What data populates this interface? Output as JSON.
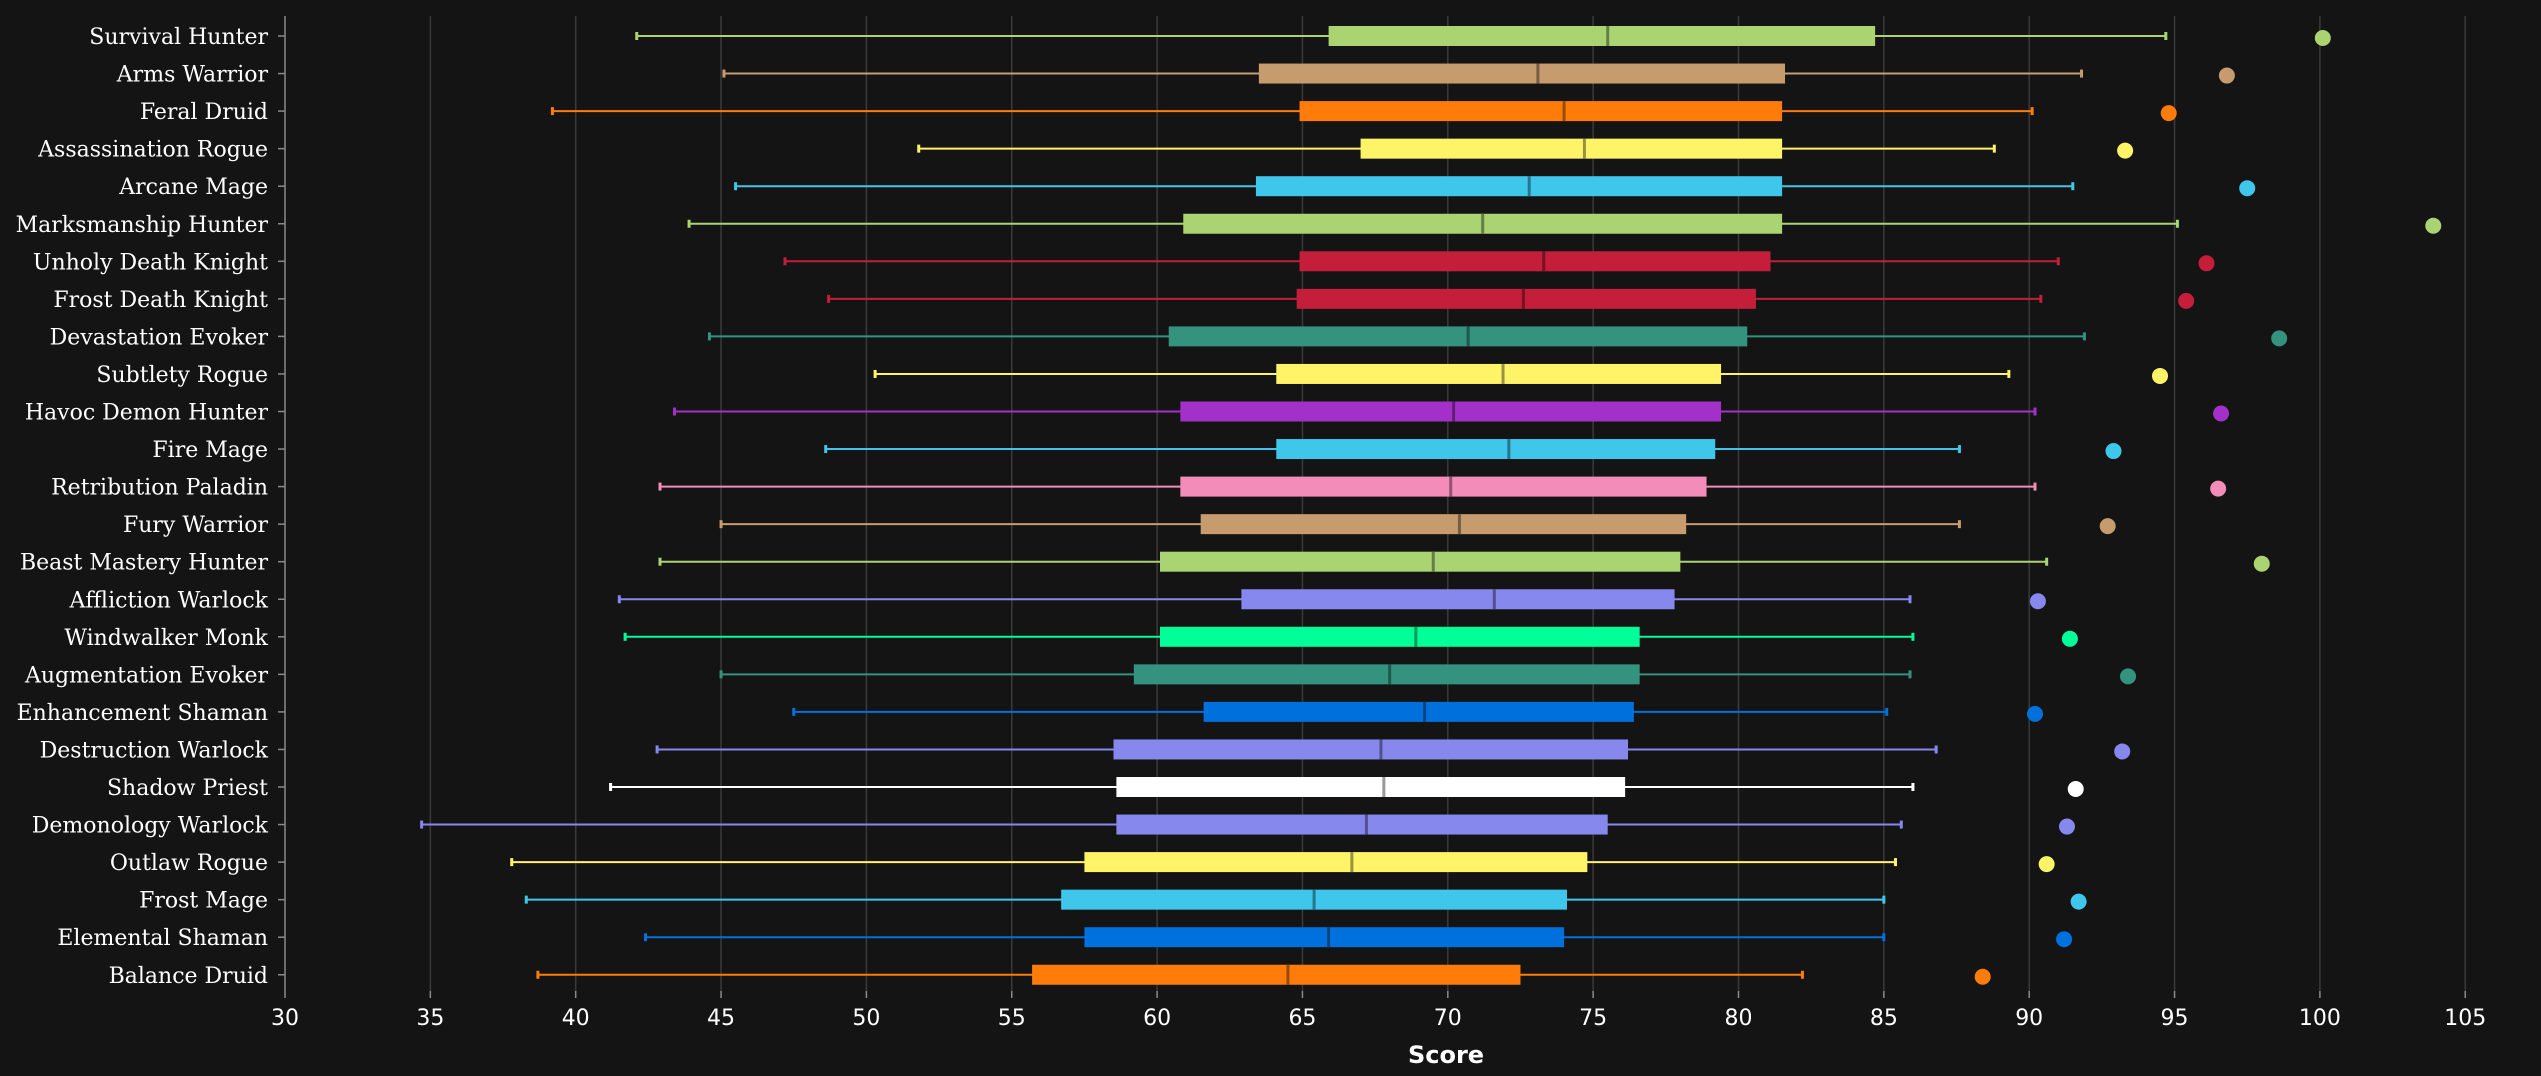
{
  "chart_data": {
    "type": "box",
    "title": "",
    "xlabel": "Score",
    "ylabel": "",
    "xlim": [
      30,
      107
    ],
    "x_ticks": [
      30,
      35,
      40,
      45,
      50,
      55,
      60,
      65,
      70,
      75,
      80,
      85,
      90,
      95,
      100,
      105
    ],
    "grid": "vertical",
    "background": "#141414",
    "series": [
      {
        "name": "Survival Hunter",
        "color": "#aad372",
        "whisker_low": 42.1,
        "q1": 65.9,
        "median": 75.5,
        "q3": 84.7,
        "whisker_high": 94.7,
        "outlier": 100.1
      },
      {
        "name": "Arms Warrior",
        "color": "#c69b6d",
        "whisker_low": 45.1,
        "q1": 63.5,
        "median": 73.1,
        "q3": 81.6,
        "whisker_high": 91.8,
        "outlier": 96.8
      },
      {
        "name": "Feral Druid",
        "color": "#ff7c0a",
        "whisker_low": 39.2,
        "q1": 64.9,
        "median": 74.0,
        "q3": 81.5,
        "whisker_high": 90.1,
        "outlier": 94.8
      },
      {
        "name": "Assassination Rogue",
        "color": "#fff468",
        "whisker_low": 51.8,
        "q1": 67.0,
        "median": 74.7,
        "q3": 81.5,
        "whisker_high": 88.8,
        "outlier": 93.3
      },
      {
        "name": "Arcane Mage",
        "color": "#3fc7eb",
        "whisker_low": 45.5,
        "q1": 63.4,
        "median": 72.8,
        "q3": 81.5,
        "whisker_high": 91.5,
        "outlier": 97.5
      },
      {
        "name": "Marksmanship Hunter",
        "color": "#aad372",
        "whisker_low": 43.9,
        "q1": 60.9,
        "median": 71.2,
        "q3": 81.5,
        "whisker_high": 95.1,
        "outlier": 103.9
      },
      {
        "name": "Unholy Death Knight",
        "color": "#c41e3a",
        "whisker_low": 47.2,
        "q1": 64.9,
        "median": 73.3,
        "q3": 81.1,
        "whisker_high": 91.0,
        "outlier": 96.1
      },
      {
        "name": "Frost Death Knight",
        "color": "#c41e3a",
        "whisker_low": 48.7,
        "q1": 64.8,
        "median": 72.6,
        "q3": 80.6,
        "whisker_high": 90.4,
        "outlier": 95.4
      },
      {
        "name": "Devastation Evoker",
        "color": "#33937f",
        "whisker_low": 44.6,
        "q1": 60.4,
        "median": 70.7,
        "q3": 80.3,
        "whisker_high": 91.9,
        "outlier": 98.6
      },
      {
        "name": "Subtlety Rogue",
        "color": "#fff468",
        "whisker_low": 50.3,
        "q1": 64.1,
        "median": 71.9,
        "q3": 79.4,
        "whisker_high": 89.3,
        "outlier": 94.5
      },
      {
        "name": "Havoc Demon Hunter",
        "color": "#a330c9",
        "whisker_low": 43.4,
        "q1": 60.8,
        "median": 70.2,
        "q3": 79.4,
        "whisker_high": 90.2,
        "outlier": 96.6
      },
      {
        "name": "Fire Mage",
        "color": "#3fc7eb",
        "whisker_low": 48.6,
        "q1": 64.1,
        "median": 72.1,
        "q3": 79.2,
        "whisker_high": 87.6,
        "outlier": 92.9
      },
      {
        "name": "Retribution Paladin",
        "color": "#f48cba",
        "whisker_low": 42.9,
        "q1": 60.8,
        "median": 70.1,
        "q3": 78.9,
        "whisker_high": 90.2,
        "outlier": 96.5
      },
      {
        "name": "Fury Warrior",
        "color": "#c69b6d",
        "whisker_low": 45.0,
        "q1": 61.5,
        "median": 70.4,
        "q3": 78.2,
        "whisker_high": 87.6,
        "outlier": 92.7
      },
      {
        "name": "Beast Mastery Hunter",
        "color": "#aad372",
        "whisker_low": 42.9,
        "q1": 60.1,
        "median": 69.5,
        "q3": 78.0,
        "whisker_high": 90.6,
        "outlier": 98.0
      },
      {
        "name": "Affliction Warlock",
        "color": "#8788ee",
        "whisker_low": 41.5,
        "q1": 62.9,
        "median": 71.6,
        "q3": 77.8,
        "whisker_high": 85.9,
        "outlier": 90.3
      },
      {
        "name": "Windwalker Monk",
        "color": "#00ff98",
        "whisker_low": 41.7,
        "q1": 60.1,
        "median": 68.9,
        "q3": 76.6,
        "whisker_high": 86.0,
        "outlier": 91.4
      },
      {
        "name": "Augmentation Evoker",
        "color": "#33937f",
        "whisker_low": 45.0,
        "q1": 59.2,
        "median": 68.0,
        "q3": 76.6,
        "whisker_high": 85.9,
        "outlier": 93.4
      },
      {
        "name": "Enhancement Shaman",
        "color": "#0070dd",
        "whisker_low": 47.5,
        "q1": 61.6,
        "median": 69.2,
        "q3": 76.4,
        "whisker_high": 85.1,
        "outlier": 90.2
      },
      {
        "name": "Destruction Warlock",
        "color": "#8788ee",
        "whisker_low": 42.8,
        "q1": 58.5,
        "median": 67.7,
        "q3": 76.2,
        "whisker_high": 86.8,
        "outlier": 93.2
      },
      {
        "name": "Shadow Priest",
        "color": "#ffffff",
        "whisker_low": 41.2,
        "q1": 58.6,
        "median": 67.8,
        "q3": 76.1,
        "whisker_high": 86.0,
        "outlier": 91.6
      },
      {
        "name": "Demonology Warlock",
        "color": "#8788ee",
        "whisker_low": 34.7,
        "q1": 58.6,
        "median": 67.2,
        "q3": 75.5,
        "whisker_high": 85.6,
        "outlier": 91.3
      },
      {
        "name": "Outlaw Rogue",
        "color": "#fff468",
        "whisker_low": 37.8,
        "q1": 57.5,
        "median": 66.7,
        "q3": 74.8,
        "whisker_high": 85.4,
        "outlier": 90.6
      },
      {
        "name": "Frost Mage",
        "color": "#3fc7eb",
        "whisker_low": 38.3,
        "q1": 56.7,
        "median": 65.4,
        "q3": 74.1,
        "whisker_high": 85.0,
        "outlier": 91.7
      },
      {
        "name": "Elemental Shaman",
        "color": "#0070dd",
        "whisker_low": 42.4,
        "q1": 57.5,
        "median": 65.9,
        "q3": 74.0,
        "whisker_high": 85.0,
        "outlier": 91.2
      },
      {
        "name": "Balance Druid",
        "color": "#ff7c0a",
        "whisker_low": 38.7,
        "q1": 55.7,
        "median": 64.5,
        "q3": 72.5,
        "whisker_high": 82.2,
        "outlier": 88.4
      }
    ]
  }
}
